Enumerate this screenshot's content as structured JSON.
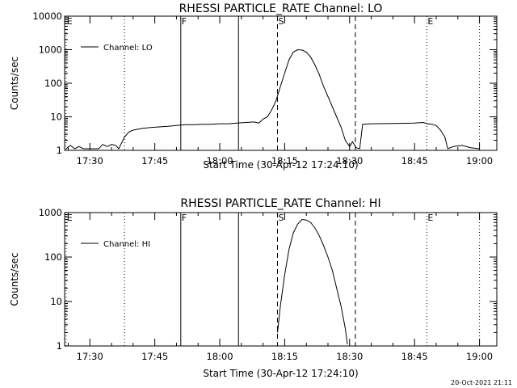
{
  "footer": {
    "timestamp": "20-Oct-2021 21:11"
  },
  "chart_data": [
    {
      "type": "line",
      "title": "RHESSI PARTICLE_RATE Channel: LO",
      "xlabel": "Start Time (30-Apr-12 17:24:10)",
      "ylabel": "Counts/sec",
      "yscale": "log",
      "xlim": [
        "17:24:10",
        "19:04:00"
      ],
      "ylim": [
        1,
        10000
      ],
      "x_ticks": [
        "17:30",
        "17:45",
        "18:00",
        "18:15",
        "18:30",
        "18:45",
        "19:00"
      ],
      "y_ticks": [
        "1",
        "10",
        "100",
        "1000",
        "10000"
      ],
      "legend": {
        "position": "top-left",
        "entries": [
          "Channel: LO"
        ]
      },
      "markers": [
        {
          "time": "17:24:30",
          "label": "E",
          "style": "dotted"
        },
        {
          "time": "17:38:00",
          "label": "",
          "style": "dotted"
        },
        {
          "time": "17:51:00",
          "label": "F",
          "style": "solid"
        },
        {
          "time": "18:04:20",
          "label": "",
          "style": "solid"
        },
        {
          "time": "18:13:20",
          "label": "S",
          "style": "dashed"
        },
        {
          "time": "18:31:20",
          "label": "",
          "style": "dashed"
        },
        {
          "time": "18:47:50",
          "label": "E",
          "style": "dotted"
        },
        {
          "time": "19:00:00",
          "label": "",
          "style": "dotted"
        }
      ],
      "series": [
        {
          "name": "Channel: LO",
          "x": [
            "17:24:30",
            "17:25:30",
            "17:26:30",
            "17:27:30",
            "17:28:30",
            "17:29:30",
            "17:31:00",
            "17:32:00",
            "17:33:00",
            "17:34:00",
            "17:35:00",
            "17:36:00",
            "17:36:40",
            "17:38:00",
            "17:39:00",
            "17:40:00",
            "17:42:00",
            "17:44:00",
            "17:46:00",
            "17:48:00",
            "17:50:00",
            "17:52:00",
            "17:54:00",
            "17:56:00",
            "17:58:00",
            "18:00:00",
            "18:02:00",
            "18:04:00",
            "18:06:00",
            "18:08:00",
            "18:09:00",
            "18:10:00",
            "18:11:00",
            "18:12:00",
            "18:13:00",
            "18:14:00",
            "18:15:00",
            "18:16:00",
            "18:17:00",
            "18:18:00",
            "18:19:00",
            "18:20:00",
            "18:21:00",
            "18:22:00",
            "18:23:00",
            "18:24:00",
            "18:25:00",
            "18:26:00",
            "18:27:00",
            "18:28:00",
            "18:29:00",
            "18:30:00",
            "18:30:40",
            "18:31:30",
            "18:32:20",
            "18:33:00",
            "18:35:00",
            "18:40:00",
            "18:45:00",
            "18:47:00",
            "18:48:00",
            "18:49:00",
            "18:50:00",
            "18:51:00",
            "18:52:00",
            "18:52:40",
            "18:54:00",
            "18:56:00",
            "18:58:00",
            "19:00:00"
          ],
          "values": [
            1,
            1.4,
            1,
            1.3,
            1,
            1,
            1,
            1,
            1.5,
            1.3,
            1.5,
            1.4,
            1,
            2.5,
            3.5,
            4,
            4.5,
            4.8,
            5,
            5.2,
            5.5,
            5.8,
            5.8,
            6,
            6,
            6.2,
            6.2,
            6.5,
            6.8,
            7,
            6.5,
            8.5,
            10,
            16,
            30,
            80,
            200,
            500,
            850,
            1000,
            980,
            850,
            600,
            350,
            180,
            80,
            40,
            20,
            10,
            5,
            2,
            1.3,
            1.8,
            1.2,
            1,
            6,
            6.2,
            6.3,
            6.5,
            6.8,
            6.2,
            6,
            5.5,
            4,
            2.5,
            1,
            1.3,
            1.4,
            1.2,
            1
          ]
        }
      ]
    },
    {
      "type": "line",
      "title": "RHESSI PARTICLE_RATE Channel: HI",
      "xlabel": "Start Time (30-Apr-12 17:24:10)",
      "ylabel": "Counts/sec",
      "yscale": "log",
      "xlim": [
        "17:24:10",
        "19:04:00"
      ],
      "ylim": [
        1,
        1000
      ],
      "x_ticks": [
        "17:30",
        "17:45",
        "18:00",
        "18:15",
        "18:30",
        "18:45",
        "19:00"
      ],
      "y_ticks": [
        "1",
        "10",
        "100",
        "1000"
      ],
      "legend": {
        "position": "top-left",
        "entries": [
          "Channel: HI"
        ]
      },
      "markers": [
        {
          "time": "17:24:30",
          "label": "E",
          "style": "dotted"
        },
        {
          "time": "17:38:00",
          "label": "",
          "style": "dotted"
        },
        {
          "time": "17:51:00",
          "label": "F",
          "style": "solid"
        },
        {
          "time": "18:04:20",
          "label": "",
          "style": "solid"
        },
        {
          "time": "18:13:20",
          "label": "S",
          "style": "dashed"
        },
        {
          "time": "18:31:20",
          "label": "",
          "style": "dashed"
        },
        {
          "time": "18:47:50",
          "label": "E",
          "style": "dotted"
        },
        {
          "time": "19:00:00",
          "label": "",
          "style": "dotted"
        }
      ],
      "series": [
        {
          "name": "Channel: HI",
          "x": [
            "18:13:20",
            "18:14:00",
            "18:15:00",
            "18:16:00",
            "18:17:00",
            "18:18:00",
            "18:19:00",
            "18:20:00",
            "18:21:00",
            "18:22:00",
            "18:23:00",
            "18:24:00",
            "18:25:00",
            "18:26:00",
            "18:27:00",
            "18:28:00",
            "18:29:00",
            "18:29:30"
          ],
          "values": [
            2,
            8,
            40,
            150,
            350,
            550,
            700,
            680,
            600,
            450,
            300,
            180,
            100,
            50,
            20,
            8,
            2.5,
            1
          ]
        }
      ]
    }
  ]
}
